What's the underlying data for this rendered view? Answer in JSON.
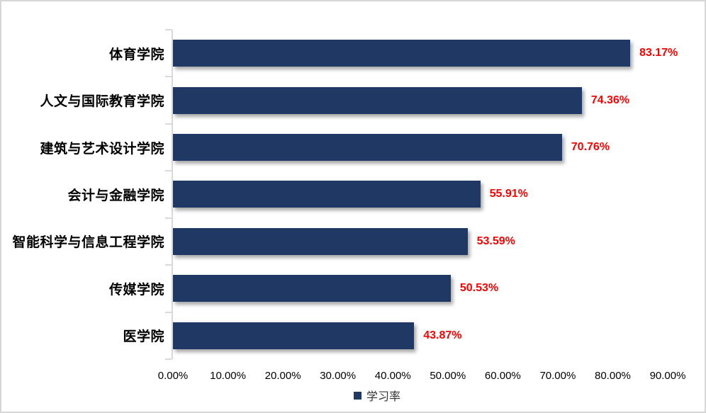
{
  "chart_data": {
    "type": "bar",
    "orientation": "horizontal",
    "title": "",
    "categories": [
      "体育学院",
      "人文与国际教育学院",
      "建筑与艺术设计学院",
      "会计与金融学院",
      "智能科学与信息工程学院",
      "传媒学院",
      "医学院"
    ],
    "values": [
      83.17,
      74.36,
      70.76,
      55.91,
      53.59,
      50.53,
      43.87
    ],
    "value_labels": [
      "83.17%",
      "74.36%",
      "70.76%",
      "55.91%",
      "53.59%",
      "50.53%",
      "43.87%"
    ],
    "series_name": "学习率",
    "x_ticks": [
      "0.00%",
      "10.00%",
      "20.00%",
      "30.00%",
      "40.00%",
      "50.00%",
      "60.00%",
      "70.00%",
      "80.00%",
      "90.00%"
    ],
    "x_min": 0,
    "x_max": 90,
    "grid": false,
    "legend_position": "bottom",
    "colors": {
      "bar": "#1F3864",
      "value_label": "#FF0000",
      "axis_line": "#D9D9D9",
      "tick_text": "#000000",
      "category_text": "#000000",
      "frame_border": "#D7D7D7"
    }
  }
}
